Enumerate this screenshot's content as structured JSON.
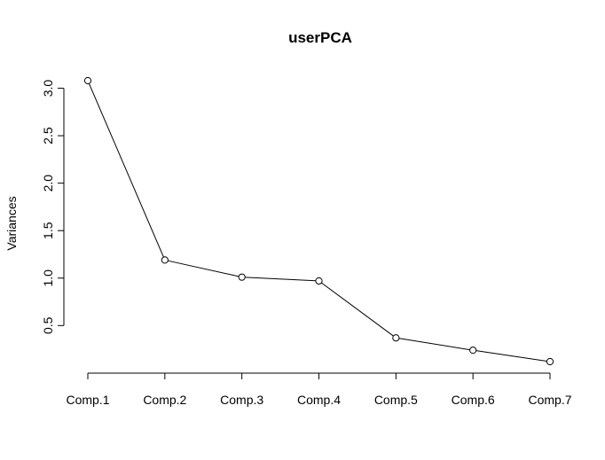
{
  "chart_data": {
    "type": "line",
    "title": "userPCA",
    "xlabel": "",
    "ylabel": "Variances",
    "categories": [
      "Comp.1",
      "Comp.2",
      "Comp.3",
      "Comp.4",
      "Comp.5",
      "Comp.6",
      "Comp.7"
    ],
    "values": [
      3.08,
      1.19,
      1.01,
      0.97,
      0.37,
      0.24,
      0.12
    ],
    "yticks": [
      "0.5",
      "1.0",
      "1.5",
      "2.0",
      "2.5",
      "3.0"
    ],
    "ylim": [
      0.12,
      3.08
    ],
    "grid": false,
    "line_color": "#000000",
    "marker": "open-circle"
  }
}
